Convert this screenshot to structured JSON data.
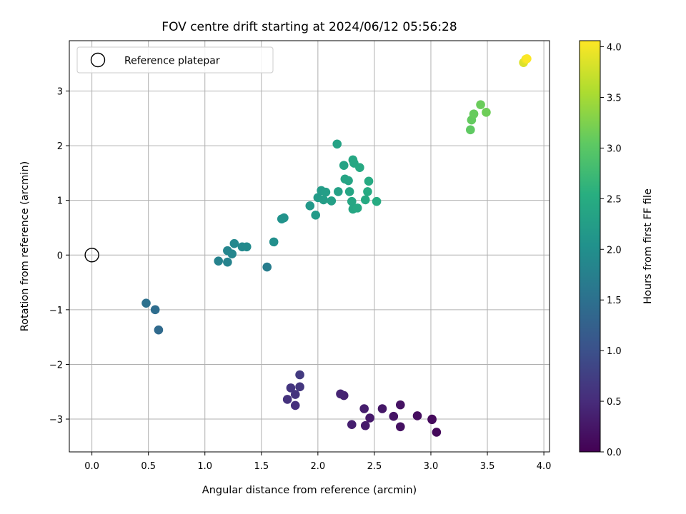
{
  "chart_data": {
    "type": "scatter",
    "title": "FOV centre drift starting at 2024/06/12 05:56:28",
    "xlabel": "Angular distance from reference (arcmin)",
    "ylabel": "Rotation from reference (arcmin)",
    "colorbar_label": "Hours from first FF file",
    "colormap": "viridis",
    "xlim": [
      -0.2,
      4.05
    ],
    "ylim": [
      -3.6,
      3.92
    ],
    "clim": [
      0.0,
      4.06
    ],
    "x_ticks": [
      0.0,
      0.5,
      1.0,
      1.5,
      2.0,
      2.5,
      3.0,
      3.5,
      4.0
    ],
    "x_tick_labels": [
      "0.0",
      "0.5",
      "1.0",
      "1.5",
      "2.0",
      "2.5",
      "3.0",
      "3.5",
      "4.0"
    ],
    "y_ticks": [
      -3,
      -2,
      -1,
      0,
      1,
      2,
      3
    ],
    "y_tick_labels": [
      "−3",
      "−2",
      "−1",
      "0",
      "1",
      "2",
      "3"
    ],
    "colorbar_ticks": [
      0.0,
      0.5,
      1.0,
      1.5,
      2.0,
      2.5,
      3.0,
      3.5,
      4.0
    ],
    "colorbar_tick_labels": [
      "0.0",
      "0.5",
      "1.0",
      "1.5",
      "2.0",
      "2.5",
      "3.0",
      "3.5",
      "4.0"
    ],
    "grid": true,
    "legend": {
      "location": "upper-left",
      "entries": [
        "Reference platepar"
      ]
    },
    "reference_point": {
      "x": 0.0,
      "y": 0.0,
      "label": "Reference platepar"
    },
    "points": [
      {
        "x": 3.01,
        "y": -3.0,
        "hours": 0.05
      },
      {
        "x": 3.05,
        "y": -3.24,
        "hours": 0.08
      },
      {
        "x": 3.01,
        "y": -3.01,
        "hours": 0.1
      },
      {
        "x": 2.88,
        "y": -2.94,
        "hours": 0.14
      },
      {
        "x": 2.73,
        "y": -3.14,
        "hours": 0.18
      },
      {
        "x": 2.73,
        "y": -2.74,
        "hours": 0.2
      },
      {
        "x": 2.67,
        "y": -2.95,
        "hours": 0.22
      },
      {
        "x": 2.57,
        "y": -2.81,
        "hours": 0.25
      },
      {
        "x": 2.46,
        "y": -2.98,
        "hours": 0.28
      },
      {
        "x": 2.42,
        "y": -3.12,
        "hours": 0.3
      },
      {
        "x": 2.41,
        "y": -2.81,
        "hours": 0.33
      },
      {
        "x": 2.3,
        "y": -3.1,
        "hours": 0.35
      },
      {
        "x": 2.23,
        "y": -2.57,
        "hours": 0.38
      },
      {
        "x": 2.2,
        "y": -2.54,
        "hours": 0.4
      },
      {
        "x": 1.8,
        "y": -2.75,
        "hours": 0.55
      },
      {
        "x": 1.73,
        "y": -2.64,
        "hours": 0.58
      },
      {
        "x": 1.8,
        "y": -2.55,
        "hours": 0.6
      },
      {
        "x": 1.76,
        "y": -2.43,
        "hours": 0.62
      },
      {
        "x": 1.84,
        "y": -2.41,
        "hours": 0.65
      },
      {
        "x": 1.84,
        "y": -2.19,
        "hours": 0.68
      },
      {
        "x": 0.59,
        "y": -1.37,
        "hours": 1.4
      },
      {
        "x": 0.56,
        "y": -1.0,
        "hours": 1.45
      },
      {
        "x": 0.48,
        "y": -0.88,
        "hours": 1.5
      },
      {
        "x": 1.55,
        "y": -0.22,
        "hours": 1.7
      },
      {
        "x": 1.12,
        "y": -0.11,
        "hours": 1.78
      },
      {
        "x": 1.2,
        "y": -0.13,
        "hours": 1.8
      },
      {
        "x": 1.2,
        "y": 0.08,
        "hours": 1.83
      },
      {
        "x": 1.24,
        "y": 0.02,
        "hours": 1.85
      },
      {
        "x": 1.26,
        "y": 0.21,
        "hours": 1.88
      },
      {
        "x": 1.33,
        "y": 0.15,
        "hours": 1.9
      },
      {
        "x": 1.37,
        "y": 0.15,
        "hours": 1.92
      },
      {
        "x": 1.61,
        "y": 0.24,
        "hours": 2.0
      },
      {
        "x": 1.68,
        "y": 0.66,
        "hours": 2.05
      },
      {
        "x": 1.7,
        "y": 0.68,
        "hours": 2.07
      },
      {
        "x": 1.93,
        "y": 0.9,
        "hours": 2.15
      },
      {
        "x": 1.98,
        "y": 0.73,
        "hours": 2.18
      },
      {
        "x": 2.0,
        "y": 1.05,
        "hours": 2.2
      },
      {
        "x": 2.03,
        "y": 1.18,
        "hours": 2.22
      },
      {
        "x": 2.05,
        "y": 1.01,
        "hours": 2.24
      },
      {
        "x": 2.07,
        "y": 1.15,
        "hours": 2.25
      },
      {
        "x": 2.12,
        "y": 0.99,
        "hours": 2.28
      },
      {
        "x": 2.18,
        "y": 1.16,
        "hours": 2.3
      },
      {
        "x": 2.17,
        "y": 2.03,
        "hours": 2.32
      },
      {
        "x": 2.23,
        "y": 1.64,
        "hours": 2.34
      },
      {
        "x": 2.24,
        "y": 1.39,
        "hours": 2.36
      },
      {
        "x": 2.27,
        "y": 1.36,
        "hours": 2.37
      },
      {
        "x": 2.28,
        "y": 1.16,
        "hours": 2.38
      },
      {
        "x": 2.3,
        "y": 0.98,
        "hours": 2.39
      },
      {
        "x": 2.31,
        "y": 0.84,
        "hours": 2.4
      },
      {
        "x": 2.31,
        "y": 1.74,
        "hours": 2.41
      },
      {
        "x": 2.32,
        "y": 1.68,
        "hours": 2.42
      },
      {
        "x": 2.35,
        "y": 0.86,
        "hours": 2.43
      },
      {
        "x": 2.37,
        "y": 1.6,
        "hours": 2.44
      },
      {
        "x": 2.42,
        "y": 1.01,
        "hours": 2.45
      },
      {
        "x": 2.44,
        "y": 1.16,
        "hours": 2.46
      },
      {
        "x": 2.45,
        "y": 1.35,
        "hours": 2.47
      },
      {
        "x": 2.52,
        "y": 0.98,
        "hours": 2.48
      },
      {
        "x": 3.35,
        "y": 2.29,
        "hours": 3.05
      },
      {
        "x": 3.36,
        "y": 2.47,
        "hours": 3.08
      },
      {
        "x": 3.38,
        "y": 2.58,
        "hours": 3.1
      },
      {
        "x": 3.44,
        "y": 2.75,
        "hours": 3.12
      },
      {
        "x": 3.49,
        "y": 2.61,
        "hours": 3.15
      },
      {
        "x": 3.82,
        "y": 3.52,
        "hours": 3.85
      },
      {
        "x": 3.84,
        "y": 3.58,
        "hours": 3.95
      },
      {
        "x": 3.85,
        "y": 3.59,
        "hours": 4.05
      }
    ]
  }
}
